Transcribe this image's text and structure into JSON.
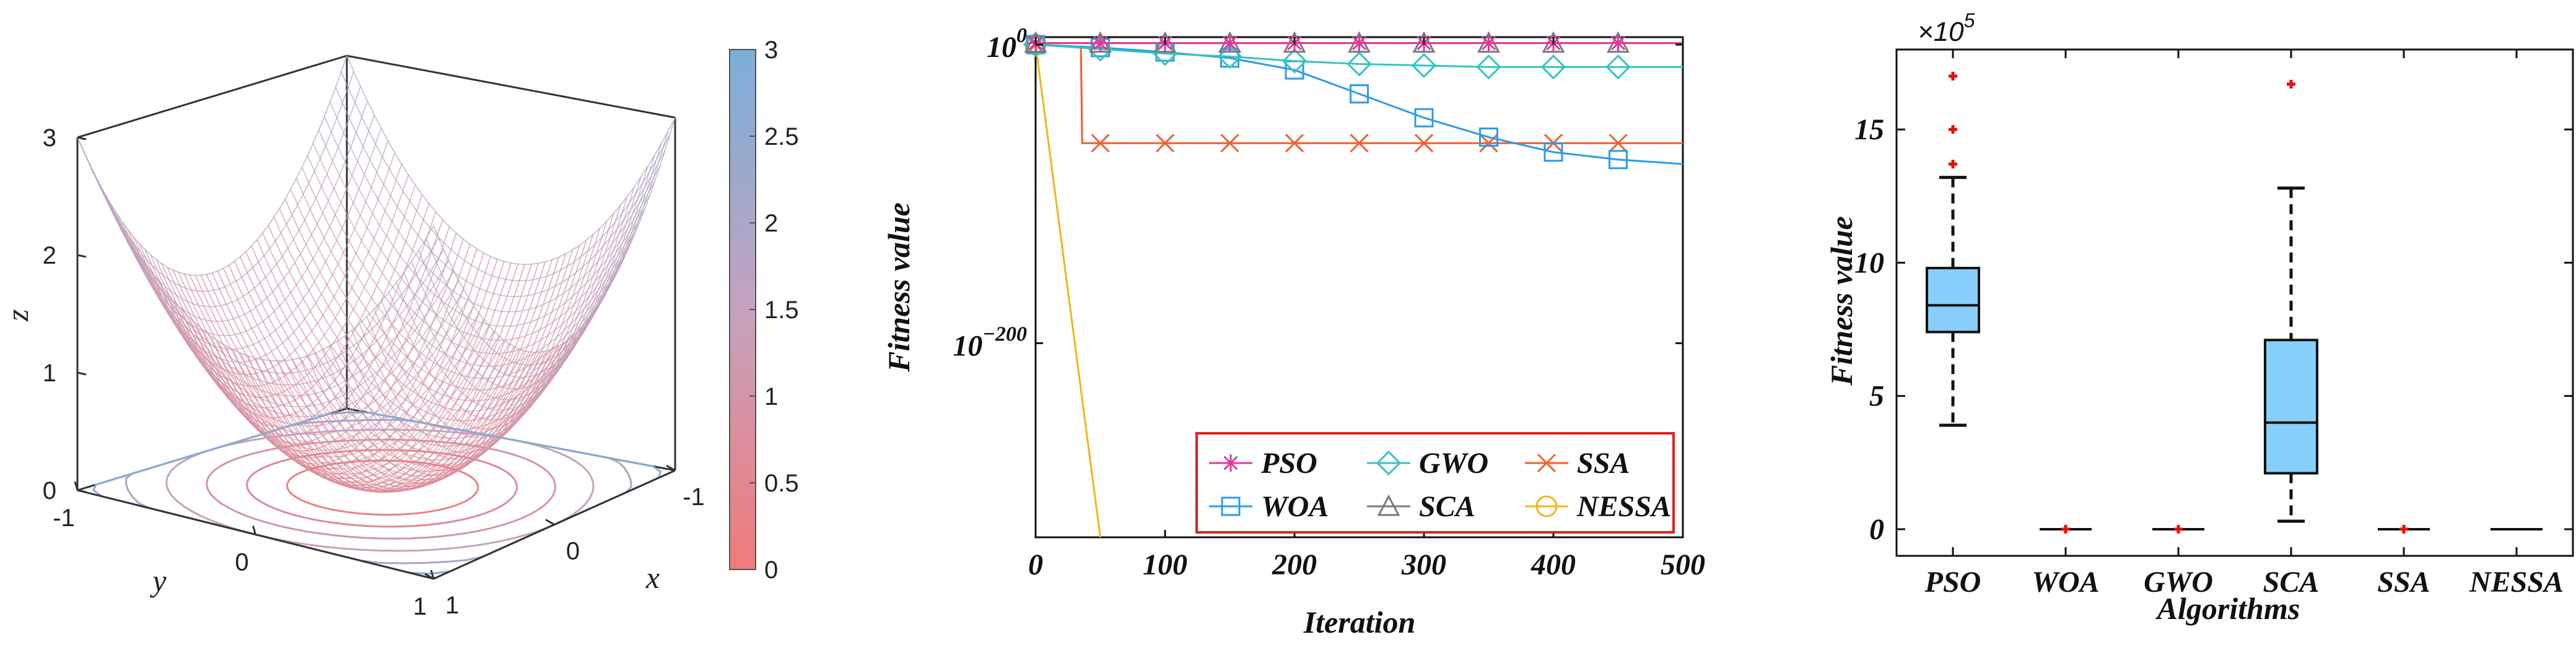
{
  "chart_data": [
    {
      "id": "surface",
      "type": "surface3d",
      "title": "",
      "xlabel": "x",
      "ylabel": "y",
      "zlabel": "z",
      "x_ticks": [
        "-1",
        "0",
        "1"
      ],
      "y_ticks": [
        "-1",
        "0",
        "1"
      ],
      "z_ticks": [
        "0",
        "1",
        "2",
        "3"
      ],
      "xlim": [
        -1,
        1
      ],
      "ylim": [
        -1,
        1
      ],
      "zlim": [
        0,
        3
      ],
      "function": "z = x^2 + y^2 + z^2 (sphere-like bowl, value 3 at corners)",
      "colorbar": {
        "min": 0,
        "max": 3,
        "ticks": [
          "0",
          "0.5",
          "1",
          "1.5",
          "2",
          "2.5",
          "3"
        ],
        "color_low": "#f07a7a",
        "color_mid": "#c4a3be",
        "color_high": "#7aaed8"
      }
    },
    {
      "id": "convergence",
      "type": "line",
      "title": "",
      "xlabel": "Iteration",
      "ylabel": "Fitness value",
      "yscale": "log",
      "xlim": [
        0,
        500
      ],
      "x_ticks": [
        "0",
        "100",
        "200",
        "300",
        "400",
        "500"
      ],
      "y_tick_labels": [
        {
          "base": "10",
          "exp": "0",
          "value_exp": 0
        },
        {
          "base": "10",
          "exp": "−200",
          "value_exp": -200
        }
      ],
      "ylim_exp": [
        -330,
        5
      ],
      "series": [
        {
          "name": "PSO",
          "color": "#e0389b",
          "marker": "star",
          "x": [
            0,
            500
          ],
          "y_exp": [
            1,
            1
          ]
        },
        {
          "name": "GWO",
          "color": "#36c2c2",
          "marker": "diamond",
          "x": [
            0,
            50,
            100,
            150,
            200,
            250,
            300,
            350,
            400,
            450,
            500
          ],
          "y_exp": [
            0,
            -3,
            -6,
            -8,
            -11,
            -13,
            -14,
            -15,
            -15,
            -15,
            -15
          ]
        },
        {
          "name": "SSA",
          "color": "#f25e2b",
          "marker": "x",
          "x": [
            0,
            35,
            36,
            500
          ],
          "y_exp": [
            0,
            -2,
            -66,
            -66
          ]
        },
        {
          "name": "WOA",
          "color": "#2a9be8",
          "marker": "square",
          "x": [
            0,
            50,
            100,
            150,
            200,
            250,
            300,
            350,
            400,
            450,
            500
          ],
          "y_exp": [
            0,
            -2,
            -5,
            -9,
            -17,
            -33,
            -49,
            -62,
            -72,
            -77,
            -80
          ]
        },
        {
          "name": "SCA",
          "color": "#7a7a7a",
          "marker": "triangle",
          "x": [
            0,
            500
          ],
          "y_exp": [
            1,
            1
          ]
        },
        {
          "name": "NESSA",
          "color": "#f2b513",
          "marker": "circle",
          "x": [
            0,
            50
          ],
          "y_exp": [
            0,
            -330
          ]
        }
      ],
      "legend": {
        "position": "bottom-right",
        "columns": 3
      }
    },
    {
      "id": "boxplot",
      "type": "box",
      "title": "",
      "xlabel": "Algorithms",
      "ylabel": "Fitness value",
      "scale_label": "×10",
      "scale_exp": "5",
      "ylim": [
        -1,
        18
      ],
      "y_ticks": [
        0,
        5,
        10,
        15
      ],
      "categories": [
        "PSO",
        "WOA",
        "GWO",
        "SCA",
        "SSA",
        "NESSA"
      ],
      "box_color": "#87cefa",
      "outlier_color": "#e31010",
      "boxes": [
        {
          "name": "PSO",
          "whisker_low": 3.9,
          "q1": 7.4,
          "median": 8.4,
          "q3": 9.8,
          "whisker_high": 13.2,
          "outliers": [
            13.7,
            15.0,
            17.0
          ]
        },
        {
          "name": "WOA",
          "whisker_low": 0,
          "q1": 0,
          "median": 0,
          "q3": 0,
          "whisker_high": 0,
          "outliers": [
            0
          ]
        },
        {
          "name": "GWO",
          "whisker_low": 0,
          "q1": 0,
          "median": 0,
          "q3": 0,
          "whisker_high": 0,
          "outliers": [
            0
          ]
        },
        {
          "name": "SCA",
          "whisker_low": 0.3,
          "q1": 2.1,
          "median": 4.0,
          "q3": 7.1,
          "whisker_high": 12.8,
          "outliers": [
            16.7
          ]
        },
        {
          "name": "SSA",
          "whisker_low": 0,
          "q1": 0,
          "median": 0,
          "q3": 0,
          "whisker_high": 0,
          "outliers": [
            0
          ]
        },
        {
          "name": "NESSA",
          "whisker_low": 0,
          "q1": 0,
          "median": 0,
          "q3": 0,
          "whisker_high": 0,
          "outliers": []
        }
      ]
    }
  ]
}
